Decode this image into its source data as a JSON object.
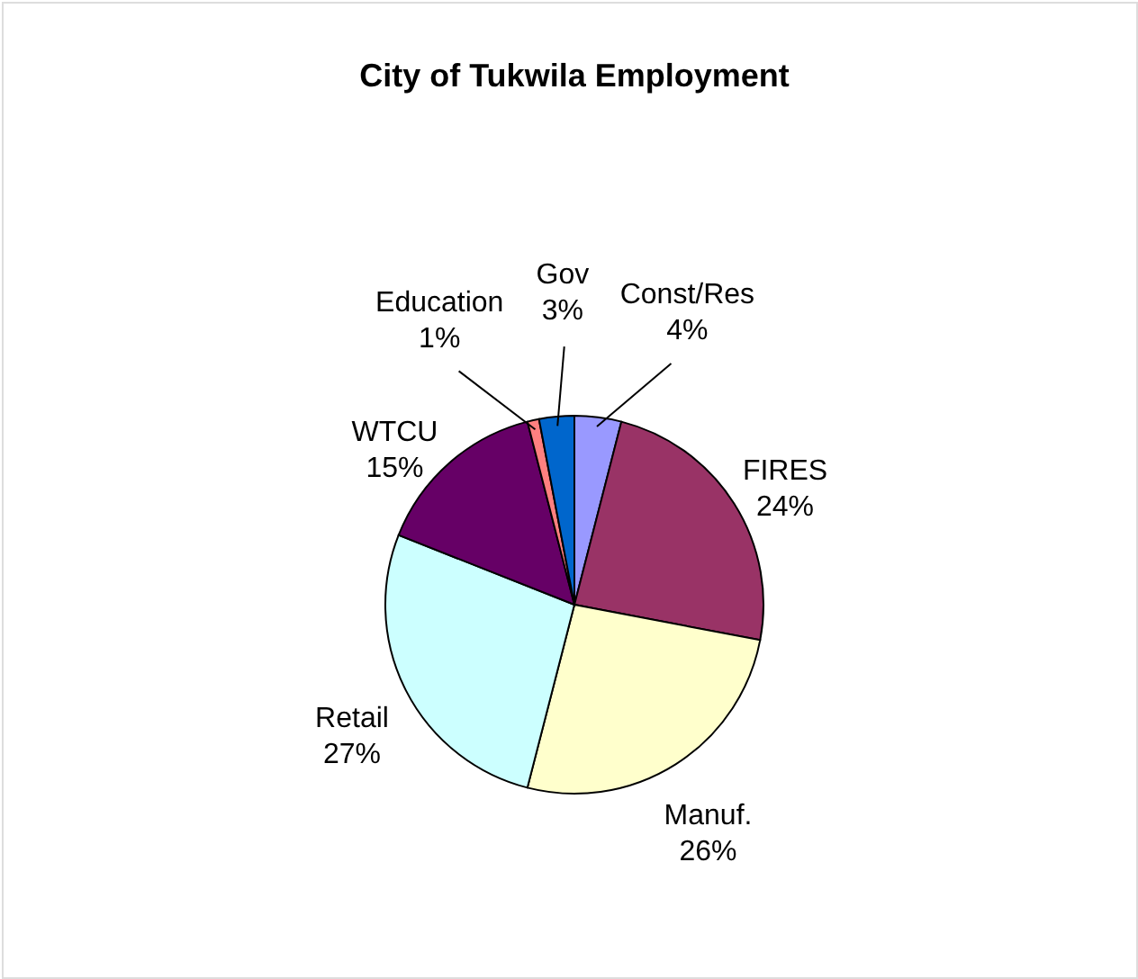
{
  "chart_data": {
    "type": "pie",
    "title": "City of Tukwila Employment",
    "categories": [
      "Const/Res",
      "FIRES",
      "Manuf.",
      "Retail",
      "WTCU",
      "Education",
      "Gov"
    ],
    "values": [
      4,
      24,
      26,
      27,
      15,
      1,
      3
    ],
    "colors": [
      "#9999ff",
      "#993366",
      "#ffffcc",
      "#ccffff",
      "#660066",
      "#ff8080",
      "#0066cc"
    ],
    "value_labels": [
      "4%",
      "24%",
      "26%",
      "27%",
      "15%",
      "1%",
      "3%"
    ]
  }
}
